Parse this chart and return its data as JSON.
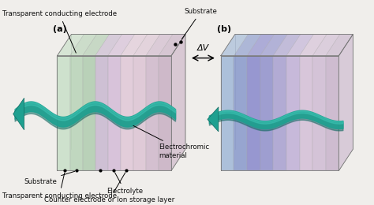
{
  "bg_color": "#f0eeeb",
  "label_a": "(a)",
  "label_b": "(b)",
  "dv_label": "ΔV",
  "label_top_tce": "Transparent conducting electrode",
  "label_top_sub": "Substrate",
  "label_bot_tce": "Transparent conducting electrode",
  "label_bot_sub": "Substrate",
  "label_electrolyte": "Electrolyte",
  "label_counter": "Counter electrode or Ion storage layer",
  "label_ec": "Electrochromic\nmaterial",
  "layers_a": [
    {
      "color": "#c8dfc8",
      "alpha": 0.85
    },
    {
      "color": "#b8d4b8",
      "alpha": 0.85
    },
    {
      "color": "#b0ccb0",
      "alpha": 0.85
    },
    {
      "color": "#c8b8d0",
      "alpha": 0.85
    },
    {
      "color": "#d4bcd8",
      "alpha": 0.85
    },
    {
      "color": "#e0c8d8",
      "alpha": 0.85
    },
    {
      "color": "#ddc4d4",
      "alpha": 0.85
    },
    {
      "color": "#d0b8cc",
      "alpha": 0.85
    },
    {
      "color": "#c8b0c4",
      "alpha": 0.85
    }
  ],
  "layers_b": [
    {
      "color": "#a0b8d8",
      "alpha": 0.85
    },
    {
      "color": "#8899cc",
      "alpha": 0.85
    },
    {
      "color": "#8888cc",
      "alpha": 0.85
    },
    {
      "color": "#9090cc",
      "alpha": 0.85
    },
    {
      "color": "#a8a0d0",
      "alpha": 0.85
    },
    {
      "color": "#c0b0d8",
      "alpha": 0.85
    },
    {
      "color": "#d4c0d8",
      "alpha": 0.85
    },
    {
      "color": "#d0bcd4",
      "alpha": 0.85
    },
    {
      "color": "#c8b4cc",
      "alpha": 0.85
    }
  ],
  "teal": "#1fa090",
  "teal_dark": "#106860",
  "teal_light": "#40c8b8",
  "label_fontsize": 6.2,
  "label_color": "#111111"
}
